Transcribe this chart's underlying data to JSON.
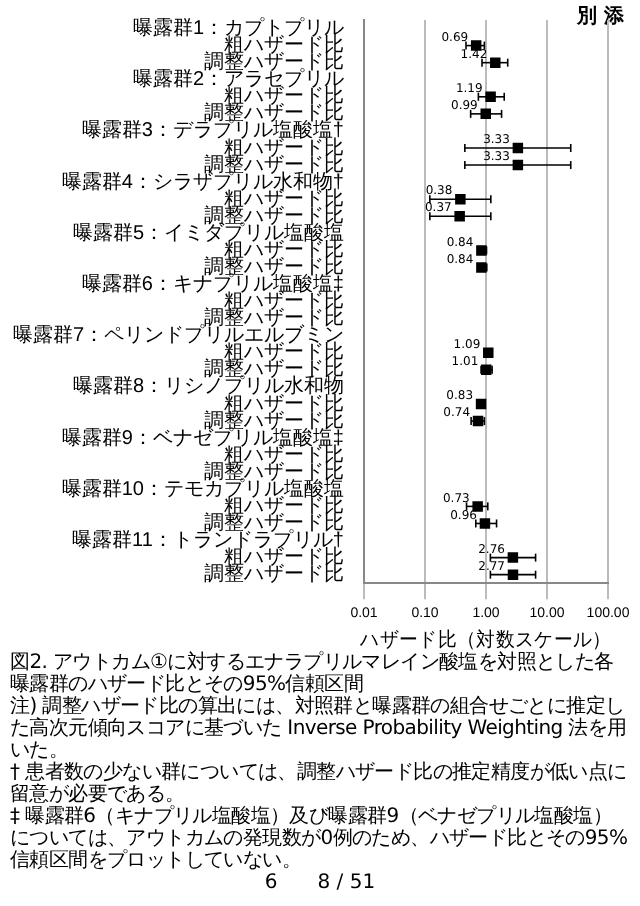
{
  "chart_data": {
    "type": "scatter",
    "orientation": "horizontal",
    "marker": "square",
    "log": "x",
    "grid": "x",
    "legend": false,
    "data_labels": true,
    "title": "図2. アウトカム①に対するエナラプリルマレイン酸塩を対照とした各曝露群のハザード比とその95%信頼区間",
    "xlabel": "ハザード比（対数スケール）",
    "categories": [
      "曝露群1：カプトプリル",
      "粗ハザード比",
      "調整ハザード比",
      "曝露群2：アラセプリル",
      "粗ハザード比",
      "調整ハザード比",
      "曝露群3：デラプリル塩酸塩†",
      "粗ハザード比",
      "調整ハザード比",
      "曝露群4：シラザプリル水和物†",
      "粗ハザード比",
      "調整ハザード比",
      "曝露群5：イミダプリル塩酸塩",
      "粗ハザード比",
      "調整ハザード比",
      "曝露群6：キナプリル塩酸塩‡",
      "粗ハザード比",
      "調整ハザード比",
      "曝露群7：ペリンドプリルエルブミン",
      "粗ハザード比",
      "調整ハザード比",
      "曝露群8：リシノプリル水和物",
      "粗ハザード比",
      "調整ハザード比",
      "曝露群9：ベナゼプリル塩酸塩‡",
      "粗ハザード比",
      "調整ハザード比",
      "曝露群10：テモカプリル塩酸塩",
      "粗ハザード比",
      "調整ハザード比",
      "曝露群11：トランドラプリル†",
      "粗ハザード比",
      "調整ハザード比"
    ],
    "xlim": [
      0.01,
      100
    ],
    "xticks": [
      {
        "value": 0.01,
        "label": "0.01"
      },
      {
        "value": 0.1,
        "label": "0.10"
      },
      {
        "value": 1,
        "label": "1.00"
      },
      {
        "value": 10,
        "label": "10.00"
      },
      {
        "value": 100,
        "label": "100.00"
      }
    ],
    "series": [
      {
        "color": "#000000",
        "values": [
          null,
          0.69,
          1.42,
          null,
          1.19,
          0.99,
          null,
          3.33,
          3.33,
          null,
          0.38,
          0.37,
          null,
          0.84,
          0.84,
          null,
          null,
          null,
          null,
          1.09,
          1.01,
          null,
          0.83,
          0.74,
          null,
          null,
          null,
          null,
          0.73,
          0.96,
          null,
          2.76,
          2.77
        ],
        "errors": [
          null,
          [
            0.47,
            0.94
          ],
          [
            0.86,
            2.27
          ],
          null,
          [
            0.75,
            1.99
          ],
          [
            0.56,
            1.8
          ],
          null,
          [
            0.45,
            24.5
          ],
          [
            0.45,
            24.5
          ],
          null,
          [
            0.12,
            1.2
          ],
          [
            0.12,
            1.2
          ],
          null,
          [
            0.76,
            1.02
          ],
          [
            0.74,
            1.03
          ],
          null,
          null,
          null,
          null,
          [
            0.95,
            1.22
          ],
          [
            0.83,
            1.26
          ],
          null,
          [
            0.74,
            0.94
          ],
          [
            0.57,
            0.94
          ],
          null,
          null,
          null,
          null,
          [
            0.48,
            1.07
          ],
          [
            0.68,
            1.49
          ],
          null,
          [
            1.18,
            6.5
          ],
          [
            1.18,
            6.5
          ]
        ]
      }
    ],
    "annotations": [
      "別 添",
      "注) 調整ハザード比の算出には、対照群と曝露群の組合せごとに推定した高次元傾向スコアに基づいた Inverse Probability Weighting 法を用いた。",
      "† 患者数の少ない群については、調整ハザード比の推定精度が低い点に留意が必要である。",
      "‡ 曝露群6（キナプリル塩酸塩）及び曝露群9（ベナゼプリル塩酸塩）については、アウトカムの発現数が0例のため、ハザード比とその95%信頼区間をプロットしていない。",
      "6",
      "8 / 51"
    ]
  }
}
